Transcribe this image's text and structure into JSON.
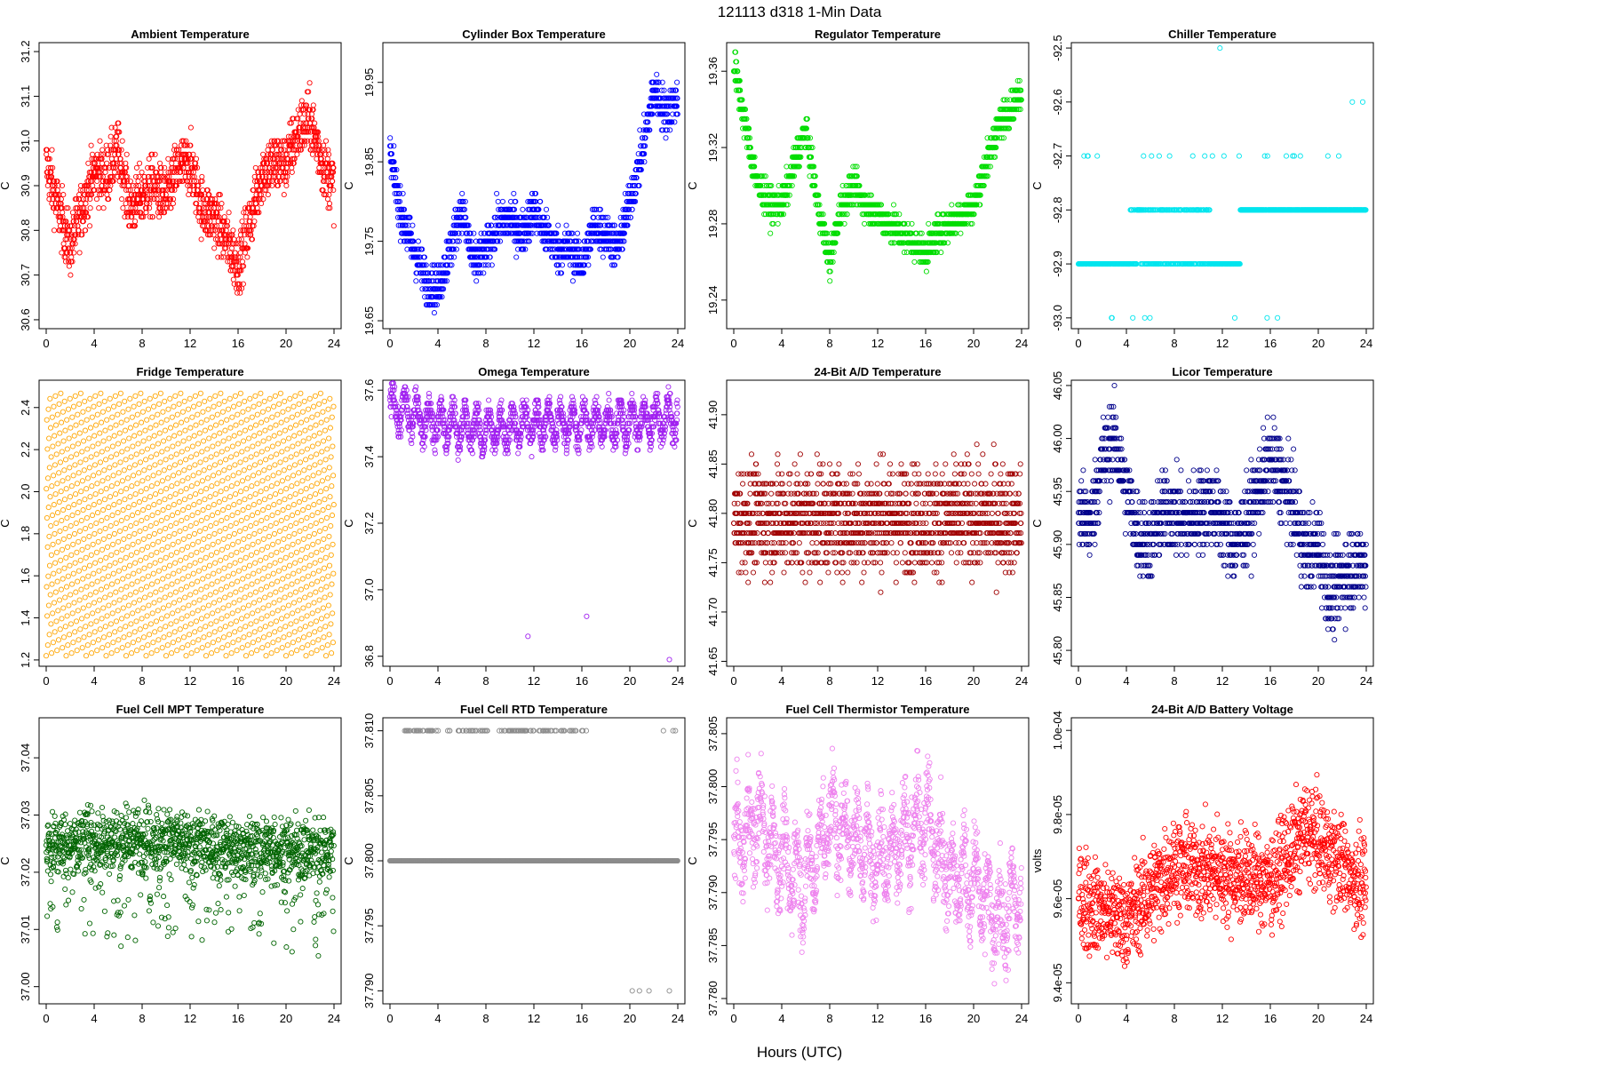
{
  "page": {
    "title": "121113    d318    1-Min Data",
    "xlabel": "Hours (UTC)"
  },
  "chart_data": [
    {
      "id": "ambient",
      "type": "scatter",
      "title": "Ambient Temperature",
      "ylabel": "C",
      "color": "#ff0000",
      "xlim": [
        0,
        24
      ],
      "ylim": [
        30.58,
        31.22
      ],
      "yticks": [
        30.6,
        30.7,
        30.8,
        30.9,
        31.0,
        31.1,
        31.2
      ],
      "ytick_labels": [
        "30.6",
        "30.7",
        "30.8",
        "30.9",
        "31.0",
        "31.1",
        "31.2"
      ],
      "xticks": [
        0,
        4,
        8,
        12,
        16,
        20,
        24
      ],
      "xtick_labels": [
        "0",
        "4",
        "8",
        "12",
        "16",
        "20",
        "24"
      ],
      "profile": [
        [
          0,
          30.95
        ],
        [
          1,
          30.85
        ],
        [
          2,
          30.76
        ],
        [
          3,
          30.85
        ],
        [
          4,
          30.93
        ],
        [
          5,
          30.92
        ],
        [
          6,
          30.98
        ],
        [
          7,
          30.85
        ],
        [
          8,
          30.88
        ],
        [
          9,
          30.9
        ],
        [
          10,
          30.87
        ],
        [
          11,
          30.94
        ],
        [
          12,
          30.95
        ],
        [
          13,
          30.85
        ],
        [
          14,
          30.83
        ],
        [
          15,
          30.78
        ],
        [
          16,
          30.72
        ],
        [
          17,
          30.82
        ],
        [
          18,
          30.93
        ],
        [
          19,
          30.95
        ],
        [
          20,
          30.95
        ],
        [
          21,
          31.02
        ],
        [
          22,
          31.05
        ],
        [
          23,
          30.95
        ],
        [
          24,
          30.9
        ]
      ],
      "noise": 0.06,
      "step": 0.01,
      "count": 1440
    },
    {
      "id": "cylinder",
      "type": "scatter",
      "title": "Cylinder Box Temperature",
      "ylabel": "C",
      "color": "#0000ff",
      "xlim": [
        0,
        24
      ],
      "ylim": [
        19.64,
        20.0
      ],
      "yticks": [
        19.65,
        19.75,
        19.85,
        19.95
      ],
      "ytick_labels": [
        "19.65",
        "19.75",
        "19.85",
        "19.95"
      ],
      "xticks": [
        0,
        4,
        8,
        12,
        16,
        20,
        24
      ],
      "xtick_labels": [
        "0",
        "4",
        "8",
        "12",
        "16",
        "20",
        "24"
      ],
      "profile": [
        [
          0,
          19.86
        ],
        [
          1,
          19.78
        ],
        [
          2,
          19.74
        ],
        [
          3,
          19.7
        ],
        [
          4,
          19.69
        ],
        [
          5,
          19.74
        ],
        [
          6,
          19.79
        ],
        [
          7,
          19.72
        ],
        [
          8,
          19.74
        ],
        [
          9,
          19.77
        ],
        [
          10,
          19.78
        ],
        [
          11,
          19.76
        ],
        [
          12,
          19.79
        ],
        [
          13,
          19.76
        ],
        [
          14,
          19.74
        ],
        [
          15,
          19.74
        ],
        [
          16,
          19.72
        ],
        [
          17,
          19.77
        ],
        [
          18,
          19.76
        ],
        [
          19,
          19.74
        ],
        [
          20,
          19.8
        ],
        [
          21,
          19.86
        ],
        [
          22,
          19.94
        ],
        [
          23,
          19.91
        ],
        [
          24,
          19.93
        ]
      ],
      "noise": 0.025,
      "step": 0.01,
      "count": 1440
    },
    {
      "id": "regulator",
      "type": "scatter",
      "title": "Regulator Temperature",
      "ylabel": "C",
      "color": "#00dd00",
      "xlim": [
        0,
        24
      ],
      "ylim": [
        19.225,
        19.375
      ],
      "yticks": [
        19.24,
        19.28,
        19.32,
        19.36
      ],
      "ytick_labels": [
        "19.24",
        "19.28",
        "19.32",
        "19.36"
      ],
      "xticks": [
        0,
        4,
        8,
        12,
        16,
        20,
        24
      ],
      "xtick_labels": [
        "0",
        "4",
        "8",
        "12",
        "16",
        "20",
        "24"
      ],
      "profile": [
        [
          0,
          19.365
        ],
        [
          1,
          19.33
        ],
        [
          2,
          19.3
        ],
        [
          3,
          19.29
        ],
        [
          4,
          19.29
        ],
        [
          5,
          19.31
        ],
        [
          6,
          19.33
        ],
        [
          7,
          19.29
        ],
        [
          8,
          19.26
        ],
        [
          9,
          19.29
        ],
        [
          10,
          19.3
        ],
        [
          11,
          19.29
        ],
        [
          12,
          19.285
        ],
        [
          13,
          19.28
        ],
        [
          14,
          19.275
        ],
        [
          15,
          19.27
        ],
        [
          16,
          19.265
        ],
        [
          17,
          19.275
        ],
        [
          18,
          19.28
        ],
        [
          19,
          19.285
        ],
        [
          20,
          19.29
        ],
        [
          21,
          19.31
        ],
        [
          22,
          19.33
        ],
        [
          23,
          19.34
        ],
        [
          24,
          19.35
        ]
      ],
      "noise": 0.008,
      "step": 0.005,
      "count": 1440
    },
    {
      "id": "chiller",
      "type": "scatter",
      "title": "Chiller Temperature",
      "ylabel": "C",
      "color": "#00e5ee",
      "xlim": [
        0,
        24
      ],
      "ylim": [
        -93.02,
        -92.49
      ],
      "yticks": [
        -93.0,
        -92.9,
        -92.8,
        -92.7,
        -92.6,
        -92.5
      ],
      "ytick_labels": [
        "-93.0",
        "-92.9",
        "-92.8",
        "-92.7",
        "-92.6",
        "-92.5"
      ],
      "xticks": [
        0,
        4,
        8,
        12,
        16,
        20,
        24
      ],
      "xtick_labels": [
        "0",
        "4",
        "8",
        "12",
        "16",
        "20",
        "24"
      ],
      "profile": [
        [
          0,
          -92.9
        ],
        [
          24,
          -92.8
        ]
      ],
      "noise": 0.0,
      "step": 0.1,
      "count": 1440,
      "discrete": true
    },
    {
      "id": "fridge",
      "type": "scatter",
      "title": "Fridge Temperature",
      "ylabel": "C",
      "color": "#ffa500",
      "xlim": [
        0,
        24
      ],
      "ylim": [
        1.17,
        2.53
      ],
      "yticks": [
        1.2,
        1.4,
        1.6,
        1.8,
        2.0,
        2.2,
        2.4
      ],
      "ytick_labels": [
        "1.2",
        "1.4",
        "1.6",
        "1.8",
        "2.0",
        "2.2",
        "2.4"
      ],
      "xticks": [
        0,
        4,
        8,
        12,
        16,
        20,
        24
      ],
      "xtick_labels": [
        "0",
        "4",
        "8",
        "12",
        "16",
        "20",
        "24"
      ],
      "profile": [
        [
          0,
          1.85
        ],
        [
          24,
          1.85
        ]
      ],
      "noise": 0.0,
      "step": 0.0,
      "count": 1440,
      "sawtooth": [
        1.22,
        2.48
      ]
    },
    {
      "id": "omega",
      "type": "scatter",
      "title": "Omega Temperature",
      "ylabel": "C",
      "color": "#a020f0",
      "xlim": [
        0,
        24
      ],
      "ylim": [
        36.77,
        37.63
      ],
      "yticks": [
        36.8,
        37.0,
        37.2,
        37.4,
        37.6
      ],
      "ytick_labels": [
        "36.8",
        "37.0",
        "37.2",
        "37.4",
        "37.6"
      ],
      "xticks": [
        0,
        4,
        8,
        12,
        16,
        20,
        24
      ],
      "xtick_labels": [
        "0",
        "4",
        "8",
        "12",
        "16",
        "20",
        "24"
      ],
      "profile": [
        [
          0,
          37.55
        ],
        [
          4,
          37.5
        ],
        [
          8,
          37.48
        ],
        [
          12,
          37.5
        ],
        [
          16,
          37.5
        ],
        [
          20,
          37.5
        ],
        [
          24,
          37.52
        ]
      ],
      "noise": 0.04,
      "step": 0.01,
      "count": 1440,
      "wave": 0.05,
      "outliers": [
        [
          11.5,
          36.86
        ],
        [
          16.4,
          36.92
        ],
        [
          23.3,
          36.79
        ]
      ]
    },
    {
      "id": "adtemp",
      "type": "scatter",
      "title": "24-Bit A/D Temperature",
      "ylabel": "C",
      "color": "#a00000",
      "xlim": [
        0,
        24
      ],
      "ylim": [
        41.645,
        41.935
      ],
      "yticks": [
        41.65,
        41.7,
        41.75,
        41.8,
        41.85,
        41.9
      ],
      "ytick_labels": [
        "41.65",
        "41.70",
        "41.75",
        "41.80",
        "41.85",
        "41.90"
      ],
      "xticks": [
        0,
        4,
        8,
        12,
        16,
        20,
        24
      ],
      "xtick_labels": [
        "0",
        "4",
        "8",
        "12",
        "16",
        "20",
        "24"
      ],
      "profile": [
        [
          0,
          41.795
        ],
        [
          24,
          41.795
        ]
      ],
      "noise": 0.05,
      "step": 0.01,
      "count": 1440
    },
    {
      "id": "licor",
      "type": "scatter",
      "title": "Licor Temperature",
      "ylabel": "C",
      "color": "#00008b",
      "xlim": [
        0,
        24
      ],
      "ylim": [
        45.785,
        46.055
      ],
      "yticks": [
        45.8,
        45.85,
        45.9,
        45.95,
        46.0,
        46.05
      ],
      "ytick_labels": [
        "45.80",
        "45.85",
        "45.90",
        "45.95",
        "46.00",
        "46.05"
      ],
      "xticks": [
        0,
        4,
        8,
        12,
        16,
        20,
        24
      ],
      "xtick_labels": [
        "0",
        "4",
        "8",
        "12",
        "16",
        "20",
        "24"
      ],
      "profile": [
        [
          0,
          45.93
        ],
        [
          1,
          45.92
        ],
        [
          2,
          45.98
        ],
        [
          3,
          46.0
        ],
        [
          4,
          45.95
        ],
        [
          5,
          45.91
        ],
        [
          6,
          45.9
        ],
        [
          7,
          45.93
        ],
        [
          8,
          45.93
        ],
        [
          9,
          45.92
        ],
        [
          10,
          45.93
        ],
        [
          11,
          45.94
        ],
        [
          12,
          45.92
        ],
        [
          13,
          45.9
        ],
        [
          14,
          45.92
        ],
        [
          15,
          45.95
        ],
        [
          16,
          45.98
        ],
        [
          17,
          45.96
        ],
        [
          18,
          45.93
        ],
        [
          19,
          45.89
        ],
        [
          20,
          45.9
        ],
        [
          21,
          45.85
        ],
        [
          22,
          45.87
        ],
        [
          23,
          45.88
        ],
        [
          24,
          45.88
        ]
      ],
      "noise": 0.035,
      "step": 0.01,
      "count": 1440
    },
    {
      "id": "fcmpt",
      "type": "scatter",
      "title": "Fuel Cell MPT Temperature",
      "ylabel": "C",
      "color": "#006400",
      "xlim": [
        0,
        24
      ],
      "ylim": [
        36.997,
        37.047
      ],
      "yticks": [
        37.0,
        37.01,
        37.02,
        37.03,
        37.04
      ],
      "ytick_labels": [
        "37.00",
        "37.01",
        "37.02",
        "37.03",
        "37.04"
      ],
      "xticks": [
        0,
        4,
        8,
        12,
        16,
        20,
        24
      ],
      "xtick_labels": [
        "0",
        "4",
        "8",
        "12",
        "16",
        "20",
        "24"
      ],
      "profile": [
        [
          0,
          37.025
        ],
        [
          8,
          37.026
        ],
        [
          16,
          37.024
        ],
        [
          24,
          37.024
        ]
      ],
      "noise": 0.005,
      "step": 0.0,
      "count": 1440,
      "tail": true
    },
    {
      "id": "fcrtd",
      "type": "scatter",
      "title": "Fuel Cell RTD Temperature",
      "ylabel": "C",
      "color": "#8c8c8c",
      "xlim": [
        0,
        24
      ],
      "ylim": [
        37.789,
        37.811
      ],
      "yticks": [
        37.79,
        37.795,
        37.8,
        37.805,
        37.81
      ],
      "ytick_labels": [
        "37.790",
        "37.795",
        "37.800",
        "37.805",
        "37.810"
      ],
      "xticks": [
        0,
        4,
        8,
        12,
        16,
        20,
        24
      ],
      "xtick_labels": [
        "0",
        "4",
        "8",
        "12",
        "16",
        "20",
        "24"
      ],
      "profile": [
        [
          0,
          37.8
        ],
        [
          24,
          37.8
        ]
      ],
      "noise": 0.0,
      "step": 0.0,
      "count": 1440,
      "rtd": true
    },
    {
      "id": "fcthermistor",
      "type": "scatter",
      "title": "Fuel Cell Thermistor Temperature",
      "ylabel": "C",
      "color": "#ee82ee",
      "xlim": [
        0,
        24
      ],
      "ylim": [
        37.7795,
        37.8065
      ],
      "yticks": [
        37.78,
        37.785,
        37.79,
        37.795,
        37.8,
        37.805
      ],
      "ytick_labels": [
        "37.780",
        "37.785",
        "37.790",
        "37.795",
        "37.800",
        "37.805"
      ],
      "xticks": [
        0,
        4,
        8,
        12,
        16,
        20,
        24
      ],
      "xtick_labels": [
        "0",
        "4",
        "8",
        "12",
        "16",
        "20",
        "24"
      ],
      "profile": [
        [
          0,
          37.794
        ],
        [
          2,
          37.797
        ],
        [
          4,
          37.793
        ],
        [
          6,
          37.791
        ],
        [
          8,
          37.797
        ],
        [
          10,
          37.795
        ],
        [
          12,
          37.793
        ],
        [
          14,
          37.795
        ],
        [
          16,
          37.797
        ],
        [
          18,
          37.792
        ],
        [
          20,
          37.791
        ],
        [
          22,
          37.787
        ],
        [
          24,
          37.79
        ]
      ],
      "noise": 0.0035,
      "step": 0.0,
      "count": 1440,
      "wave": 0.003
    },
    {
      "id": "battery",
      "type": "scatter",
      "title": "24-Bit A/D Battery Voltage",
      "ylabel": "volts",
      "color": "#ff0000",
      "xlim": [
        0,
        24
      ],
      "ylim": [
        9.35e-05,
        0.0001003
      ],
      "yticks": [
        9.4e-05,
        9.6e-05,
        9.8e-05,
        0.0001
      ],
      "ytick_labels": [
        "9.4e-05",
        "9.6e-05",
        "9.8e-05",
        "1.0e-04"
      ],
      "xticks": [
        0,
        4,
        8,
        12,
        16,
        20,
        24
      ],
      "xtick_labels": [
        "0",
        "4",
        "8",
        "12",
        "16",
        "20",
        "24"
      ],
      "profile": [
        [
          0,
          9.6e-05
        ],
        [
          4,
          9.55e-05
        ],
        [
          8,
          9.68e-05
        ],
        [
          12,
          9.66e-05
        ],
        [
          16,
          9.64e-05
        ],
        [
          19,
          9.76e-05
        ],
        [
          22,
          9.68e-05
        ],
        [
          24,
          9.62e-05
        ]
      ],
      "noise": 1e-06,
      "step": 0.0,
      "count": 1440
    }
  ]
}
